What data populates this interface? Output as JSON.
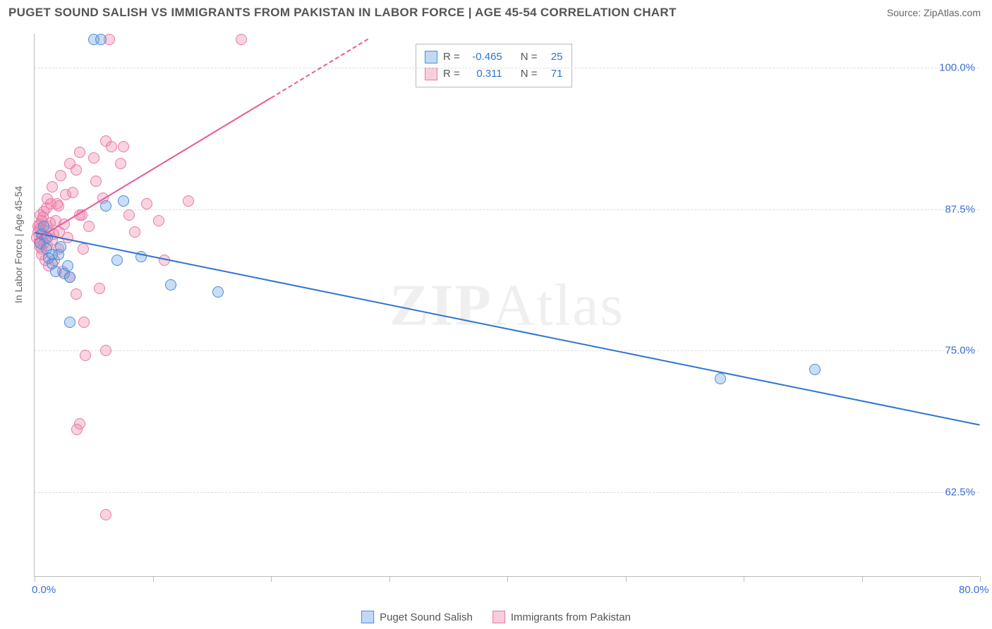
{
  "header": {
    "title": "PUGET SOUND SALISH VS IMMIGRANTS FROM PAKISTAN IN LABOR FORCE | AGE 45-54 CORRELATION CHART",
    "source": "Source: ZipAtlas.com"
  },
  "axes": {
    "ylabel": "In Labor Force | Age 45-54",
    "x_min": 0,
    "x_max": 80,
    "y_min": 55,
    "y_max": 103,
    "x_ticks": [
      0,
      10,
      20,
      30,
      40,
      50,
      60,
      70,
      80
    ],
    "x_tick_labels": {
      "0": "0.0%",
      "80": "80.0%"
    },
    "y_ticks": [
      62.5,
      75.0,
      87.5,
      100.0
    ],
    "y_tick_labels": [
      "62.5%",
      "75.0%",
      "87.5%",
      "100.0%"
    ],
    "grid_color": "#dddddd",
    "axis_color": "#bbbbbb"
  },
  "series": {
    "blue": {
      "name": "Puget Sound Salish",
      "color_fill": "rgba(100,160,230,0.35)",
      "color_stroke": "#4a8bd8",
      "line_color": "#2f74d0",
      "R": "-0.465",
      "N": "25",
      "trend": {
        "x1": 0,
        "y1": 85.5,
        "x2": 80,
        "y2": 68.5
      },
      "points": [
        [
          0.5,
          84.5
        ],
        [
          0.6,
          85.3
        ],
        [
          0.8,
          86.0
        ],
        [
          1.0,
          84.0
        ],
        [
          1.1,
          85.0
        ],
        [
          1.2,
          83.2
        ],
        [
          1.5,
          82.7
        ],
        [
          1.5,
          83.5
        ],
        [
          1.8,
          82.0
        ],
        [
          2.0,
          83.5
        ],
        [
          2.2,
          84.2
        ],
        [
          2.5,
          81.8
        ],
        [
          2.8,
          82.5
        ],
        [
          3.0,
          81.5
        ],
        [
          3.0,
          77.5
        ],
        [
          5.0,
          102.5
        ],
        [
          5.6,
          102.5
        ],
        [
          6.0,
          87.8
        ],
        [
          7.0,
          83.0
        ],
        [
          7.5,
          88.2
        ],
        [
          9.0,
          83.3
        ],
        [
          11.5,
          80.8
        ],
        [
          15.5,
          80.2
        ],
        [
          58,
          72.5
        ],
        [
          66,
          73.3
        ]
      ]
    },
    "pink": {
      "name": "Immigrants from Pakistan",
      "color_fill": "rgba(240,130,170,0.35)",
      "color_stroke": "#e77aa8",
      "line_color": "#e85a9a",
      "R": "0.311",
      "N": "71",
      "trend_solid": {
        "x1": 0,
        "y1": 84.8,
        "x2": 20,
        "y2": 97.4
      },
      "trend_dashed": {
        "x1": 20,
        "y1": 97.4,
        "x2": 28.2,
        "y2": 102.6
      },
      "points": [
        [
          0.2,
          85.0
        ],
        [
          0.3,
          86.0
        ],
        [
          0.3,
          85.5
        ],
        [
          0.4,
          84.6
        ],
        [
          0.4,
          86.2
        ],
        [
          0.5,
          84.2
        ],
        [
          0.5,
          85.8
        ],
        [
          0.5,
          87.0
        ],
        [
          0.6,
          84.0
        ],
        [
          0.6,
          86.5
        ],
        [
          0.6,
          83.5
        ],
        [
          0.7,
          85.2
        ],
        [
          0.7,
          86.8
        ],
        [
          0.8,
          84.5
        ],
        [
          0.8,
          87.3
        ],
        [
          0.9,
          85.0
        ],
        [
          0.9,
          83.0
        ],
        [
          1.0,
          86.0
        ],
        [
          1.0,
          87.6
        ],
        [
          1.1,
          84.3
        ],
        [
          1.1,
          88.4
        ],
        [
          1.2,
          85.6
        ],
        [
          1.2,
          82.5
        ],
        [
          1.3,
          86.3
        ],
        [
          1.4,
          88.0
        ],
        [
          1.5,
          84.8
        ],
        [
          1.5,
          89.5
        ],
        [
          1.6,
          85.3
        ],
        [
          1.7,
          83.0
        ],
        [
          1.8,
          86.5
        ],
        [
          1.9,
          88.0
        ],
        [
          2.0,
          84.0
        ],
        [
          2.0,
          87.8
        ],
        [
          2.1,
          85.5
        ],
        [
          2.2,
          90.5
        ],
        [
          2.4,
          82.0
        ],
        [
          2.5,
          86.2
        ],
        [
          2.6,
          88.8
        ],
        [
          2.8,
          85.0
        ],
        [
          3.0,
          91.5
        ],
        [
          3.0,
          81.5
        ],
        [
          3.2,
          89.0
        ],
        [
          3.5,
          80.0
        ],
        [
          3.5,
          91.0
        ],
        [
          3.6,
          68.0
        ],
        [
          3.8,
          68.5
        ],
        [
          3.8,
          92.5
        ],
        [
          4.0,
          87.0
        ],
        [
          4.2,
          77.5
        ],
        [
          4.3,
          74.6
        ],
        [
          4.6,
          86.0
        ],
        [
          5.0,
          92.0
        ],
        [
          5.2,
          90.0
        ],
        [
          5.5,
          80.5
        ],
        [
          5.8,
          88.5
        ],
        [
          6.0,
          75.0
        ],
        [
          6.0,
          93.5
        ],
        [
          6.3,
          102.5
        ],
        [
          6.5,
          93.0
        ],
        [
          7.3,
          91.5
        ],
        [
          6.0,
          60.5
        ],
        [
          7.5,
          93.0
        ],
        [
          8.0,
          87.0
        ],
        [
          8.5,
          85.5
        ],
        [
          9.5,
          88.0
        ],
        [
          10.5,
          86.5
        ],
        [
          11.0,
          83.0
        ],
        [
          13.0,
          88.2
        ],
        [
          17.5,
          102.5
        ],
        [
          3.8,
          87.0
        ],
        [
          4.1,
          84.0
        ]
      ]
    }
  },
  "stats_box": {
    "rows": [
      {
        "swatch": "blue",
        "r_label": "R =",
        "r_val": "-0.465",
        "n_label": "N =",
        "n_val": "25"
      },
      {
        "swatch": "pink",
        "r_label": "R =",
        "r_val": "0.311",
        "n_label": "N =",
        "n_val": "71"
      }
    ]
  },
  "bottom_legend": [
    {
      "swatch": "blue",
      "label": "Puget Sound Salish"
    },
    {
      "swatch": "pink",
      "label": "Immigrants from Pakistan"
    }
  ],
  "watermark": {
    "part1": "ZIP",
    "part2": "Atlas"
  }
}
